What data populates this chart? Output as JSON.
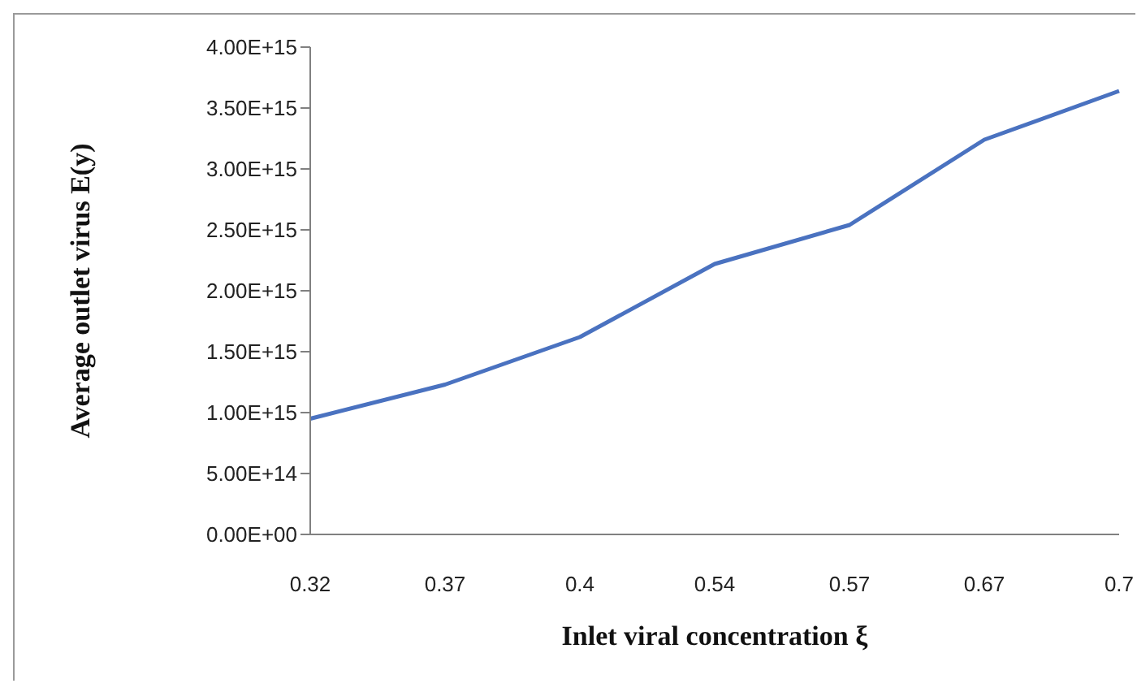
{
  "chart_data": {
    "type": "line",
    "xlabel": "Inlet viral concentration ξ",
    "ylabel": "Average outlet virus E(y)",
    "categories": [
      "0.32",
      "0.37",
      "0.4",
      "0.54",
      "0.57",
      "0.67",
      "0.7"
    ],
    "series": [
      {
        "color": "#4a72c0",
        "values": [
          950000000000000.0,
          1230000000000000.0,
          1620000000000000.0,
          2220000000000000.0,
          2540000000000000.0,
          3240000000000000.0,
          3640000000000000.0
        ]
      }
    ],
    "ylim": [
      0,
      4000000000000000.0
    ],
    "yticks": [
      {
        "value": 0,
        "label": "0.00E+00"
      },
      {
        "value": 500000000000000.0,
        "label": "5.00E+14"
      },
      {
        "value": 1000000000000000.0,
        "label": "1.00E+15"
      },
      {
        "value": 1500000000000000.0,
        "label": "1.50E+15"
      },
      {
        "value": 2000000000000000.0,
        "label": "2.00E+15"
      },
      {
        "value": 2500000000000000.0,
        "label": "2.50E+15"
      },
      {
        "value": 3000000000000000.0,
        "label": "3.00E+15"
      },
      {
        "value": 3500000000000000.0,
        "label": "3.50E+15"
      },
      {
        "value": 4000000000000000.0,
        "label": "4.00E+15"
      }
    ],
    "grid": false,
    "legend": false,
    "marker": "none",
    "line_style": "solid"
  }
}
